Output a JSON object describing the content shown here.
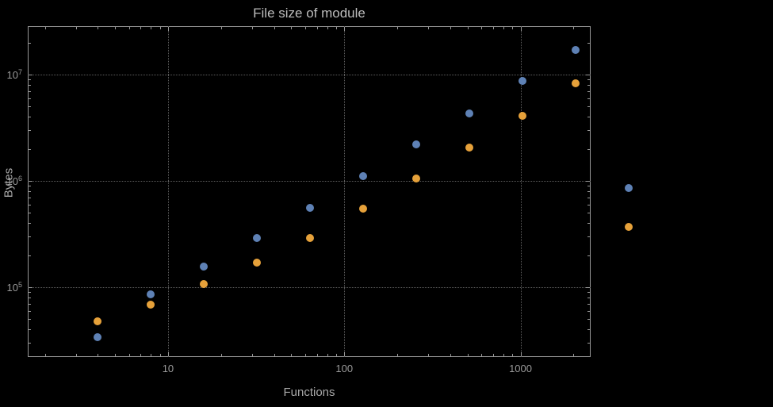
{
  "title": "File size of module",
  "colors": {
    "background": "#000000",
    "frame": "#989898",
    "grid": "#5e5e5e",
    "text_dim": "#9a9a9a",
    "text": "#a8a8a8",
    "title": "#bdbdbd"
  },
  "chart_data": {
    "type": "scatter",
    "title": "File size of module",
    "xlabel": "Functions",
    "ylabel": "Bytes",
    "x_scale": "log",
    "y_scale": "log",
    "grid": "dotted",
    "legend": "none",
    "x_range": [
      1.6,
      2500
    ],
    "y_range": [
      22000,
      28500000
    ],
    "x_ticks": [
      10,
      100,
      1000
    ],
    "y_ticks": [
      100000,
      1000000,
      10000000
    ],
    "series": [
      {
        "name": "series-blue",
        "color": "#5e81b5",
        "points": [
          [
            4,
            34000
          ],
          [
            8,
            85000
          ],
          [
            16,
            155000
          ],
          [
            32,
            290000
          ],
          [
            64,
            560000
          ],
          [
            128,
            1100000
          ],
          [
            256,
            2200000
          ],
          [
            512,
            4300000
          ],
          [
            1024,
            8700000
          ],
          [
            2048,
            17000000
          ],
          [
            4096,
            850000
          ]
        ]
      },
      {
        "name": "series-orange",
        "color": "#e6a13a",
        "points": [
          [
            4,
            48000
          ],
          [
            8,
            68000
          ],
          [
            16,
            107000
          ],
          [
            32,
            170000
          ],
          [
            64,
            290000
          ],
          [
            128,
            550000
          ],
          [
            256,
            1050000
          ],
          [
            512,
            2050000
          ],
          [
            1024,
            4100000
          ],
          [
            2048,
            8300000
          ],
          [
            4096,
            370000
          ]
        ]
      }
    ]
  }
}
